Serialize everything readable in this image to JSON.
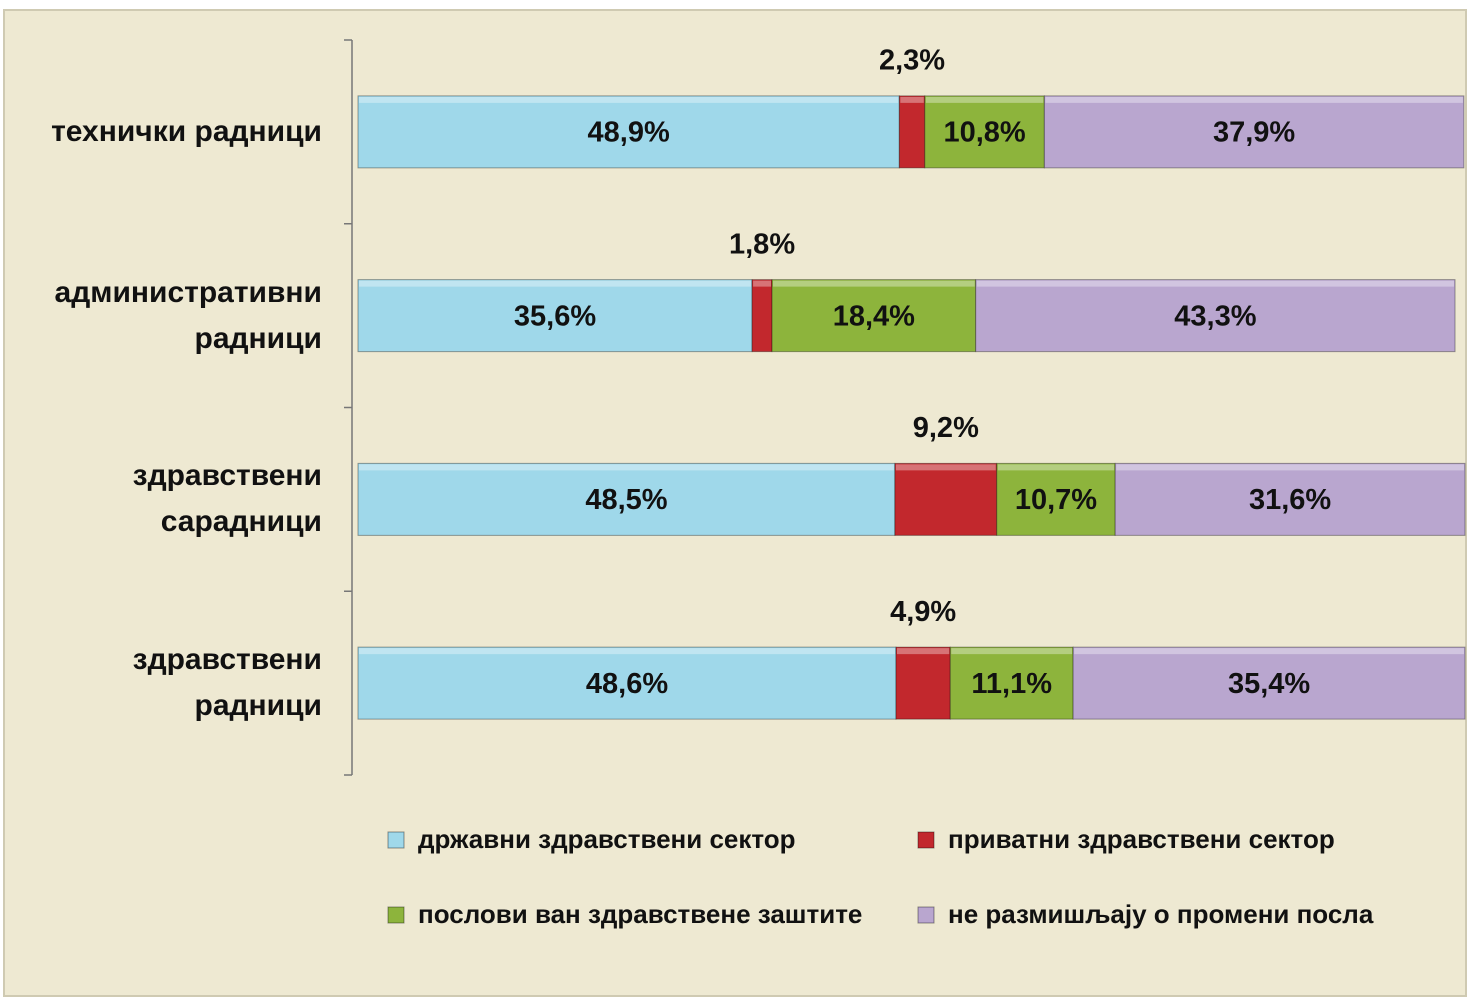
{
  "chart_data": {
    "type": "stacked_bar_horizontal",
    "categories": [
      "технички радници",
      "административни радници",
      "здравствени сарадници",
      "здравствени радници"
    ],
    "xlim": [
      0,
      100
    ],
    "legend": "bottom",
    "series": [
      {
        "name": "државни здравствени сектор",
        "color": "#9fd8ea",
        "values": [
          48.9,
          35.6,
          48.5,
          48.6
        ],
        "value_labels": [
          "48,9%",
          "35,6%",
          "48,5%",
          "48,6%"
        ]
      },
      {
        "name": "приватни здравствени сектор",
        "color": "#c2282d",
        "label_position": "outside",
        "values": [
          2.3,
          1.8,
          9.2,
          4.9
        ],
        "value_labels": [
          "2,3%",
          "1,8%",
          "9,2%",
          "4,9%"
        ]
      },
      {
        "name": "послови ван здравствене заштите",
        "color": "#8db43c",
        "values": [
          10.8,
          18.4,
          10.7,
          11.1
        ],
        "value_labels": [
          "10,8%",
          "18,4%",
          "10,7%",
          "11,1%"
        ]
      },
      {
        "name": "не размишљају о промени посла",
        "color": "#b9a6cf",
        "values": [
          37.9,
          43.3,
          31.6,
          35.4
        ],
        "value_labels": [
          "37,9%",
          "43,3%",
          "31,6%",
          "35,4%"
        ]
      }
    ]
  }
}
